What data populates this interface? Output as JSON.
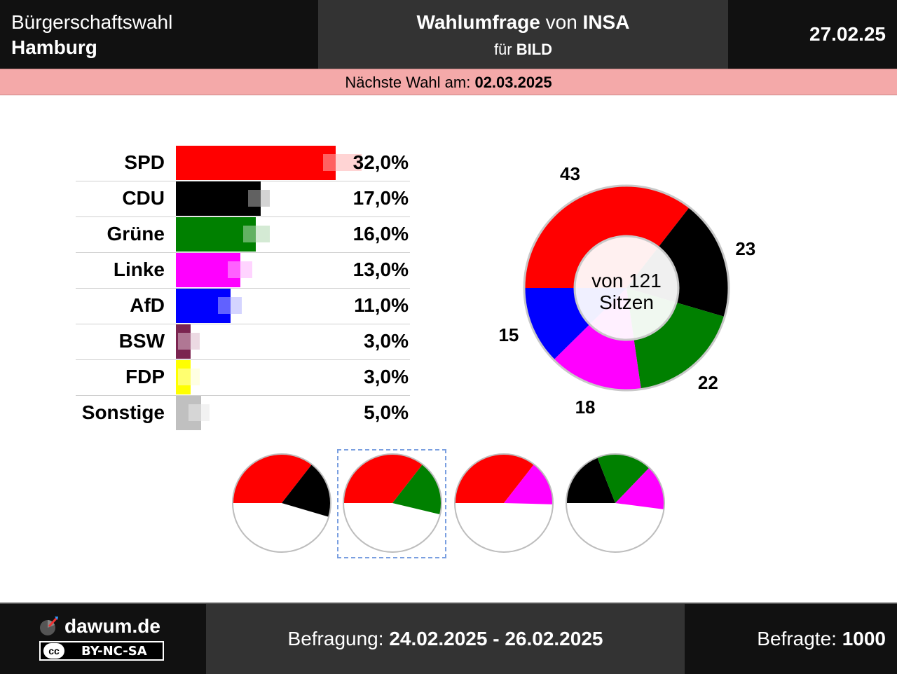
{
  "header": {
    "election_line1": "Bürgerschaftswahl",
    "election_line2": "Hamburg",
    "title_bold": "Wahlumfrage",
    "title_mid": " von ",
    "institute": "INSA",
    "client_prefix": "für ",
    "client": "BILD",
    "date": "27.02.25"
  },
  "next_election": {
    "label": "Nächste Wahl am: ",
    "date": "02.03.2025"
  },
  "chart_data": [
    {
      "type": "bar",
      "orientation": "horizontal",
      "categories": [
        "SPD",
        "CDU",
        "Grüne",
        "Linke",
        "AfD",
        "BSW",
        "FDP",
        "Sonstige"
      ],
      "values": [
        32.0,
        17.0,
        16.0,
        13.0,
        11.0,
        3.0,
        3.0,
        5.0
      ],
      "value_labels": [
        "32,0%",
        "17,0%",
        "16,0%",
        "13,0%",
        "11,0%",
        "3,0%",
        "3,0%",
        "5,0%"
      ],
      "previous_values": [
        37.0,
        18.5,
        18.5,
        15.0,
        13.0,
        4.5,
        4.5,
        6.5
      ],
      "colors": [
        "#ff0000",
        "#000000",
        "#008000",
        "#ff00ff",
        "#0000ff",
        "#7b2450",
        "#ffff00",
        "#c0c0c0"
      ],
      "previous_colors": [
        "#ffb0b0",
        "#b0b0b0",
        "#b0d8b0",
        "#ffb0ff",
        "#b0b0ff",
        "#ddbbcc",
        "#ffffcc",
        "#e8e8e8"
      ],
      "xlim": [
        0,
        45
      ]
    },
    {
      "type": "pie",
      "variant": "donut",
      "categories": [
        "SPD",
        "CDU",
        "Grüne",
        "Linke",
        "AfD"
      ],
      "values": [
        43,
        23,
        22,
        18,
        15
      ],
      "colors": [
        "#ff0000",
        "#000000",
        "#008000",
        "#ff00ff",
        "#0000ff"
      ],
      "center_text_line1": "von 121",
      "center_text_line2": "Sitzen",
      "total": 121
    },
    {
      "type": "pie",
      "variant": "half",
      "title": "",
      "coalitions": [
        {
          "parties": [
            "SPD",
            "CDU"
          ],
          "seats": [
            43,
            23
          ],
          "colors": [
            "#ff0000",
            "#000000"
          ],
          "selected": false
        },
        {
          "parties": [
            "SPD",
            "Grüne"
          ],
          "seats": [
            43,
            22
          ],
          "colors": [
            "#ff0000",
            "#008000"
          ],
          "selected": true
        },
        {
          "parties": [
            "SPD",
            "Linke"
          ],
          "seats": [
            43,
            18
          ],
          "colors": [
            "#ff0000",
            "#ff00ff"
          ],
          "selected": false
        },
        {
          "parties": [
            "CDU",
            "Grüne",
            "Linke"
          ],
          "seats": [
            23,
            22,
            18
          ],
          "colors": [
            "#000000",
            "#008000",
            "#ff00ff"
          ],
          "selected": false
        }
      ],
      "total": 121
    }
  ],
  "footer": {
    "site": "dawum.de",
    "license": "BY-NC-SA",
    "license_icon": "cc",
    "survey_label": "Befragung: ",
    "survey_period": "24.02.2025 - 26.02.2025",
    "respondents_label": "Befragte: ",
    "respondents": "1000"
  }
}
